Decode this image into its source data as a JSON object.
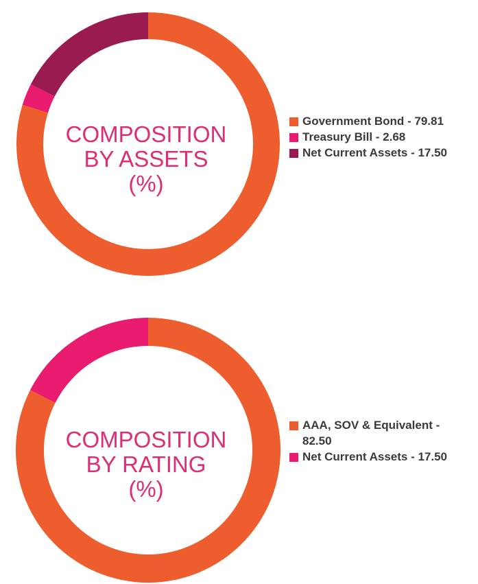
{
  "chart_data": [
    {
      "type": "pie",
      "variant": "donut",
      "title_lines": [
        "COMPOSITION",
        "BY ASSETS",
        "(%)"
      ],
      "categories": [
        "Government Bond",
        "Treasury Bill",
        "Net Current Assets"
      ],
      "values": [
        79.81,
        2.68,
        17.5
      ],
      "colors": [
        "#ee5d2d",
        "#e91b6f",
        "#9a1b4f"
      ],
      "legend_labels": [
        "Government Bond - 79.81",
        "Treasury Bill - 2.68",
        "Net Current Assets - 17.50"
      ],
      "legend_position": "right"
    },
    {
      "type": "pie",
      "variant": "donut",
      "title_lines": [
        "COMPOSITION",
        "BY RATING",
        "(%)"
      ],
      "categories": [
        "AAA, SOV & Equivalent",
        "Net Current Assets"
      ],
      "values": [
        82.5,
        17.5
      ],
      "colors": [
        "#ee5d2d",
        "#e91b6f"
      ],
      "legend_labels": [
        "AAA, SOV & Equivalent - 82.50",
        "Net Current Assets - 17.50"
      ],
      "legend_position": "right"
    }
  ]
}
